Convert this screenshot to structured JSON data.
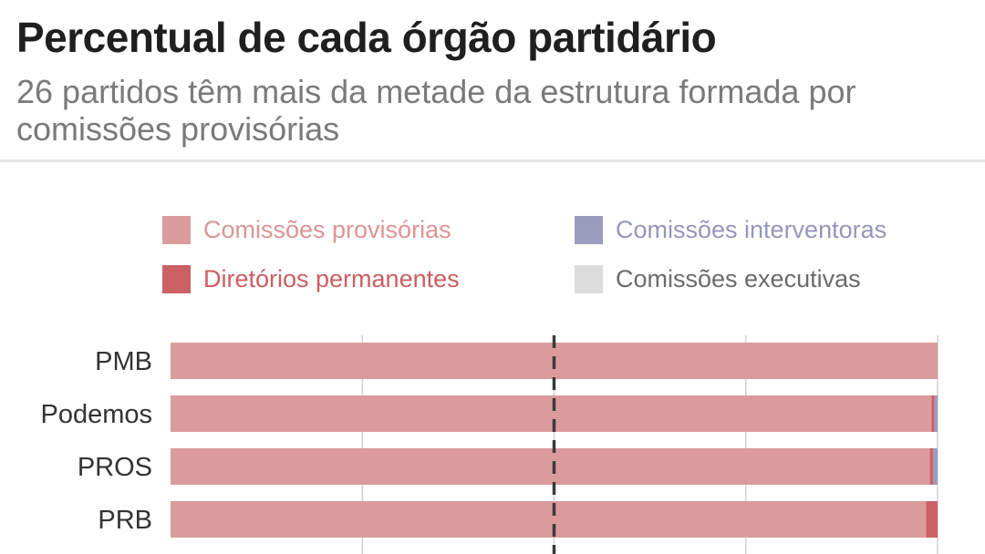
{
  "header": {
    "title": "Percentual de cada órgão partidário",
    "subtitle": "26 partidos têm mais da metade da estrutura formada por comissões provisórias"
  },
  "legend": [
    {
      "label": "Comissões provisórias",
      "color": "#db9b9b",
      "text_color": "#dd9494"
    },
    {
      "label": "Comissões interventoras",
      "color": "#9a9cbd",
      "text_color": "#9497ba"
    },
    {
      "label": "Diretórios permanentes",
      "color": "#cb6164",
      "text_color": "#cd5d62"
    },
    {
      "label": "Comissões executivas",
      "color": "#dcdcdc",
      "text_color": "#6b6b6b"
    }
  ],
  "chart_data": {
    "type": "bar",
    "orientation": "horizontal",
    "stacked": true,
    "categories": [
      "PMB",
      "Podemos",
      "PROS",
      "PRB"
    ],
    "series": [
      {
        "name": "Comissões provisórias",
        "color": "#db9b9b",
        "values": [
          100,
          99.2,
          99.0,
          98.5
        ]
      },
      {
        "name": "Diretórios permanentes",
        "color": "#cb6164",
        "values": [
          0,
          0.4,
          0.4,
          1.5
        ]
      },
      {
        "name": "Comissões interventoras",
        "color": "#9a9cbd",
        "values": [
          0,
          0.4,
          0.6,
          0
        ]
      },
      {
        "name": "Comissões executivas",
        "color": "#dcdcdc",
        "values": [
          0,
          0,
          0,
          0
        ]
      }
    ],
    "xlim": [
      0,
      100
    ],
    "gridlines": [
      25,
      50,
      75,
      100
    ],
    "reference_line": 50,
    "grid": true
  }
}
